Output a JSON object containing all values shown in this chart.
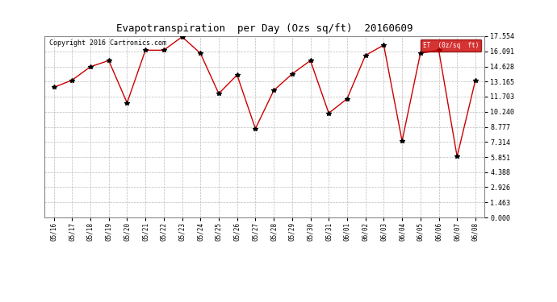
{
  "title": "Evapotranspiration  per Day (Ozs sq/ft)  20160609",
  "copyright": "Copyright 2016 Cartronics.com",
  "legend_label": "ET  (0z/sq  ft)",
  "x_labels": [
    "05/16",
    "05/17",
    "05/18",
    "05/19",
    "05/20",
    "05/21",
    "05/22",
    "05/23",
    "05/24",
    "05/25",
    "05/26",
    "05/27",
    "05/28",
    "05/29",
    "05/30",
    "05/31",
    "06/01",
    "06/02",
    "06/03",
    "06/04",
    "06/05",
    "06/06",
    "06/07",
    "06/08"
  ],
  "y_values": [
    12.6,
    13.3,
    14.6,
    15.2,
    11.1,
    16.2,
    16.2,
    17.5,
    15.9,
    12.0,
    13.8,
    8.6,
    12.3,
    13.9,
    15.2,
    10.1,
    11.5,
    15.7,
    16.7,
    7.4,
    15.9,
    16.2,
    5.9,
    13.3
  ],
  "y_ticks": [
    0.0,
    1.463,
    2.926,
    4.388,
    5.851,
    7.314,
    8.777,
    10.24,
    11.703,
    13.165,
    14.628,
    16.091,
    17.554
  ],
  "ylim": [
    0,
    17.554
  ],
  "line_color": "#cc0000",
  "marker": "*",
  "marker_color": "#000000",
  "background_color": "#ffffff",
  "grid_color": "#aaaaaa",
  "legend_bg": "#cc0000",
  "legend_text_color": "#ffffff",
  "title_fontsize": 9,
  "copyright_fontsize": 6,
  "tick_fontsize": 5.5,
  "ytick_fontsize": 6
}
